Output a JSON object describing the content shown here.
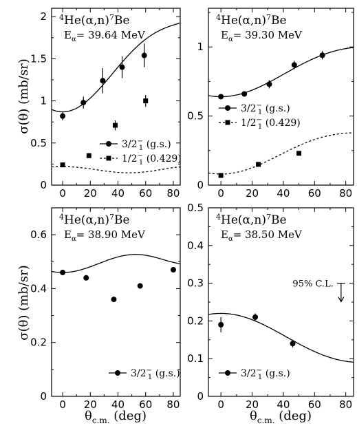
{
  "chart_data": [
    {
      "type": "scatter",
      "reaction": "4He(α,n)7Be",
      "energy": "Eα= 39.64 MeV",
      "xlim": [
        -8,
        85
      ],
      "ylim": [
        0,
        2.1
      ],
      "xticks": [
        "0",
        "20",
        "40",
        "60",
        "80"
      ],
      "yticks": [
        "0",
        "0.5",
        "1",
        "1.5",
        "2"
      ],
      "series": [
        {
          "name": "3/2₁⁻ (g.s.)",
          "marker": "circle",
          "x": [
            0,
            15,
            29,
            43,
            59
          ],
          "y": [
            0.82,
            0.98,
            1.24,
            1.4,
            1.54
          ],
          "err": [
            0.05,
            0.07,
            0.15,
            0.13,
            0.14
          ]
        },
        {
          "name": "1/2₁⁻ (0.429)",
          "marker": "square",
          "x": [
            0,
            19,
            38,
            60
          ],
          "y": [
            0.24,
            0.35,
            0.71,
            1.0
          ],
          "err": [
            0.02,
            0.03,
            0.06,
            0.07
          ]
        }
      ],
      "fits": [
        {
          "style": "solid",
          "a": 0.87,
          "b": 0.29,
          "c": -0.21,
          "d": 1.0
        },
        {
          "style": "dashed",
          "a": 0.22,
          "b": 0.0,
          "c": 0.5,
          "d": -0.5
        }
      ]
    },
    {
      "type": "scatter",
      "reaction": "4He(α,n)7Be",
      "energy": "Eα= 39.30 MeV",
      "xlim": [
        -8,
        85
      ],
      "ylim": [
        0,
        1.28
      ],
      "xticks": [
        "0",
        "20",
        "40",
        "60",
        "80"
      ],
      "yticks": [
        "0",
        "0.5",
        "1"
      ],
      "series": [
        {
          "name": "3/2₁⁻ (g.s.)",
          "marker": "circle",
          "x": [
            0,
            15,
            31,
            47,
            65
          ],
          "y": [
            0.64,
            0.66,
            0.73,
            0.87,
            0.94
          ],
          "err": [
            0.01,
            0.02,
            0.03,
            0.03,
            0.03
          ]
        },
        {
          "name": "1/2₁⁻ (0.429)",
          "marker": "square",
          "x": [
            0,
            24,
            50
          ],
          "y": [
            0.07,
            0.15,
            0.23
          ],
          "err": [
            0.01,
            0.01,
            0.01
          ]
        }
      ],
      "fits": [
        {
          "style": "solid",
          "a": 0.64,
          "b": 0.03,
          "c": 0.2,
          "d": 0.13
        },
        {
          "style": "dashed",
          "a": 0.08,
          "b": 0.0,
          "c": 0.1,
          "d": 0.2
        }
      ]
    },
    {
      "type": "scatter",
      "reaction": "4He(α,n)7Be",
      "energy": "Eα= 38.90 MeV",
      "xlim": [
        -8,
        85
      ],
      "ylim": [
        0,
        0.7
      ],
      "xticks": [
        "0",
        "20",
        "40",
        "60",
        "80"
      ],
      "yticks": [
        "0",
        "0.2",
        "0.4",
        "0.6"
      ],
      "series": [
        {
          "name": "3/2₁⁻ (g.s.)",
          "marker": "circle",
          "x": [
            0,
            17,
            37,
            56,
            80
          ],
          "y": [
            0.46,
            0.44,
            0.36,
            0.41,
            0.47
          ],
          "err": [
            0.01,
            0.01,
            0.01,
            0.01,
            0.01
          ]
        }
      ],
      "fits": [
        {
          "style": "solid",
          "a": 0.46,
          "b": 0.0,
          "c": -0.3,
          "d": 0.33
        }
      ]
    },
    {
      "type": "scatter",
      "reaction": "4He(α,n)7Be",
      "energy": "Eα= 38.50 MeV",
      "annotation": "95% C.L.",
      "xlim": [
        -8,
        85
      ],
      "ylim": [
        0,
        0.5
      ],
      "xticks": [
        "0",
        "20",
        "40",
        "60",
        "80"
      ],
      "yticks": [
        "0",
        "0.1",
        "0.2",
        "0.3",
        "0.4",
        "0.5"
      ],
      "series": [
        {
          "name": "3/2₁⁻ (g.s.)",
          "marker": "circle",
          "x": [
            0,
            22,
            46
          ],
          "y": [
            0.19,
            0.21,
            0.14
          ],
          "err": [
            0.02,
            0.01,
            0.01
          ]
        }
      ],
      "upper_limit": {
        "x": 77,
        "y": 0.3
      },
      "fits": [
        {
          "style": "solid",
          "a": 0.22,
          "b": 0.0,
          "c": -0.1,
          "d": -0.03
        }
      ]
    }
  ],
  "axis": {
    "ylabel": "σ(θ) (mb/sr)",
    "xlabel": "θc.m. (deg)"
  }
}
